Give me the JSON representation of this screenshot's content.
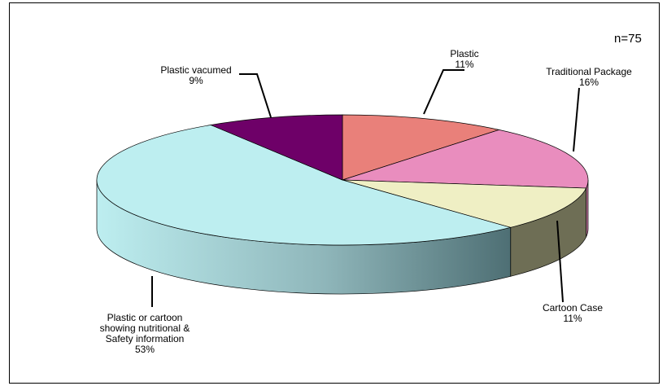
{
  "chart_data": {
    "type": "pie",
    "style": "3d-exploded-none",
    "annotation": "n=75",
    "slices": [
      {
        "name": "Plastic",
        "value": 11,
        "label_value": "11%",
        "color": "#E9807A",
        "side_color": "#B86560"
      },
      {
        "name": "Traditional Package",
        "value": 16,
        "label_value": "16%",
        "color": "#E98DBE",
        "side_color": "#B46E93"
      },
      {
        "name": "Cartoon Case",
        "value": 11,
        "label_value": "11%",
        "color": "#EFEFC4",
        "side_color": "#6E6E55"
      },
      {
        "name": "Plastic or cartoon showing nutritional & Safety information",
        "label_lines": [
          "Plastic or cartoon",
          "showing nutritional &",
          "Safety information"
        ],
        "value": 53,
        "label_value": "53%",
        "color": "#BDEEF0",
        "side_color": "#7FA9AE"
      },
      {
        "name": "Plastic vacumed",
        "value": 9,
        "label_value": "9%",
        "color": "#6E0068",
        "side_color": "#4A0046"
      }
    ]
  }
}
